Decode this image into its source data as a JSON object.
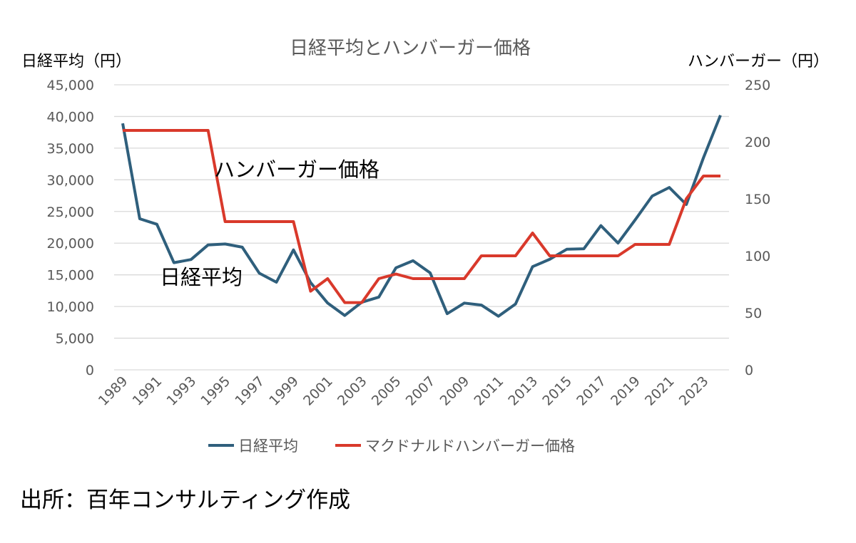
{
  "chart_data": {
    "type": "line",
    "title": "日経平均とハンバーガー価格",
    "ylabel_left": "日経平均（円）",
    "ylabel_right": "ハンバーガー（円）",
    "ylim_left": [
      0,
      45000
    ],
    "ylim_right": [
      0,
      250
    ],
    "yticks_left": [
      "0",
      "5,000",
      "10,000",
      "15,000",
      "20,000",
      "25,000",
      "30,000",
      "35,000",
      "40,000",
      "45,000"
    ],
    "yticks_right": [
      "0",
      "50",
      "100",
      "150",
      "200",
      "250"
    ],
    "x": [
      1989,
      1990,
      1991,
      1992,
      1993,
      1994,
      1995,
      1996,
      1997,
      1998,
      1999,
      2000,
      2001,
      2002,
      2003,
      2004,
      2005,
      2006,
      2007,
      2008,
      2009,
      2010,
      2011,
      2012,
      2013,
      2014,
      2015,
      2016,
      2017,
      2018,
      2019,
      2020,
      2021,
      2022,
      2023,
      2024
    ],
    "xtick_labels": [
      "1989",
      "1991",
      "1993",
      "1995",
      "1997",
      "1999",
      "2001",
      "2003",
      "2005",
      "2007",
      "2009",
      "2011",
      "2013",
      "2015",
      "2017",
      "2019",
      "2021",
      "2023"
    ],
    "grid": true,
    "legend_position": "bottom",
    "series": [
      {
        "name": "日経平均",
        "axis": "left",
        "color": "#2f5f7c",
        "values": [
          38916,
          23849,
          22984,
          16925,
          17417,
          19723,
          19868,
          19361,
          15259,
          13842,
          18934,
          13786,
          10543,
          8579,
          10677,
          11489,
          16111,
          17226,
          15308,
          8860,
          10546,
          10229,
          8455,
          10395,
          16291,
          17451,
          19034,
          19114,
          22765,
          20015,
          23657,
          27444,
          28792,
          26095,
          33464,
          40200
        ]
      },
      {
        "name": "マクドナルドハンバーガー価格",
        "axis": "right",
        "color": "#d9392b",
        "values": [
          210,
          210,
          210,
          210,
          210,
          210,
          130,
          130,
          130,
          130,
          130,
          69,
          80,
          59,
          59,
          80,
          84,
          80,
          80,
          80,
          80,
          100,
          100,
          100,
          120,
          100,
          100,
          100,
          100,
          100,
          110,
          110,
          110,
          150,
          170,
          170
        ]
      }
    ],
    "annotations": [
      "ハンバーガー価格",
      "日経平均"
    ]
  },
  "source": "出所：百年コンサルティング作成"
}
